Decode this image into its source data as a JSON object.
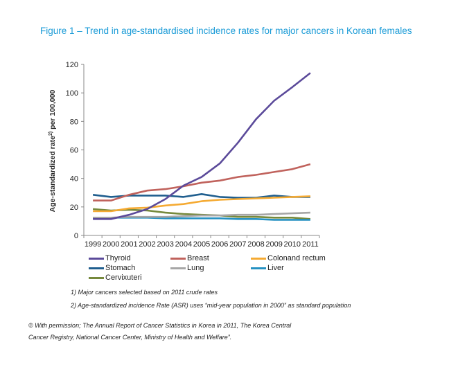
{
  "title": "Figure 1 – Trend in age-standardised incidence rates for major cancers in Korean females",
  "chart_data": {
    "type": "line",
    "title": "Figure 1 – Trend in age-standardised incidence rates for major cancers in Korean females",
    "xlabel": "",
    "ylabel": "Age-standardized rate",
    "ylabel_sup": "2)",
    "ylabel_suffix": "per 100,000",
    "ylim": [
      0,
      120
    ],
    "yticks": [
      0,
      20,
      40,
      60,
      80,
      100,
      120
    ],
    "categories": [
      "1999",
      "2000",
      "2001",
      "2002",
      "2003",
      "2004",
      "2005",
      "2006",
      "2007",
      "2008",
      "2009",
      "2010",
      "2011"
    ],
    "series": [
      {
        "name": "Thyroid",
        "color": "#5b4a9a",
        "values": [
          11.5,
          11.5,
          14.5,
          18.5,
          25.5,
          35,
          41,
          50.5,
          65,
          81.5,
          94.5,
          104,
          114
        ]
      },
      {
        "name": "Breast",
        "color": "#c0625c",
        "values": [
          24.5,
          24.5,
          28.5,
          31.5,
          32.5,
          34.5,
          37,
          38.5,
          41,
          42.5,
          44.5,
          46.5,
          50
        ]
      },
      {
        "name": "Colonand rectum",
        "color": "#f5aa32",
        "values": [
          17,
          17,
          19,
          19.5,
          21,
          22,
          24,
          25,
          25.5,
          26,
          26.5,
          27,
          27.5
        ]
      },
      {
        "name": "Stomach",
        "color": "#1f5e8e",
        "values": [
          28.5,
          27,
          28,
          28,
          28,
          27,
          29,
          27,
          26.5,
          26.5,
          28,
          27,
          27
        ]
      },
      {
        "name": "Lung",
        "color": "#a6a6a6",
        "values": [
          12.5,
          12.5,
          13,
          13,
          13,
          13.5,
          14,
          14,
          14.5,
          14.5,
          15,
          15.5,
          16
        ]
      },
      {
        "name": "Liver",
        "color": "#2591c2",
        "values": [
          12.5,
          12.5,
          12.5,
          12.5,
          12,
          12,
          12,
          12,
          11.5,
          11.5,
          11,
          11,
          11
        ]
      },
      {
        "name": "Cervixuteri",
        "color": "#76893c",
        "values": [
          18.5,
          17.5,
          18,
          17.5,
          16,
          15,
          14.5,
          14,
          13,
          13,
          12.5,
          12.5,
          11.5
        ]
      }
    ]
  },
  "notes": [
    "1) Major cancers selected based on 2011 crude rates",
    "2) Age-standardized incidence Rate (ASR) uses “mid-year population in 2000” as standard population"
  ],
  "credit": [
    "© With permission; The Annual Report of Cancer Statistics in Korea in 2011, The Korea Central",
    "Cancer Registry, National Cancer Center, Ministry of Health and Welfare”."
  ]
}
